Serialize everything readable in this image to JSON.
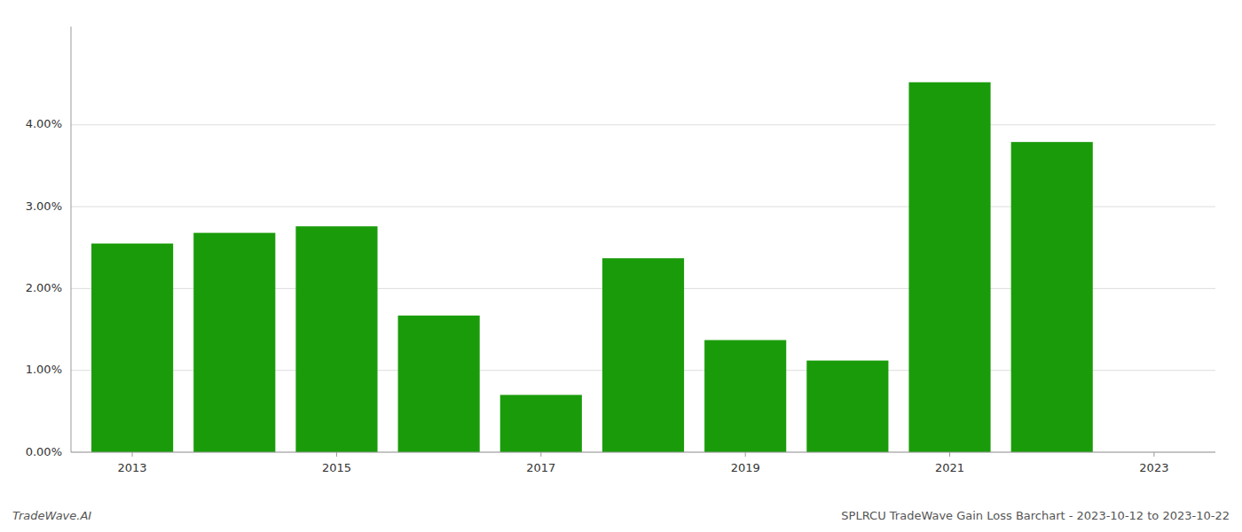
{
  "chart_data": {
    "type": "bar",
    "title": "SPLRCU TradeWave Gain Loss Barchart - 2023-10-12 to 2023-10-22",
    "annotations": [
      "TradeWave.AI"
    ],
    "x": [
      2013,
      2014,
      2015,
      2016,
      2017,
      2018,
      2019,
      2020,
      2021,
      2022
    ],
    "values": [
      0.0255,
      0.0268,
      0.0276,
      0.0167,
      0.007,
      0.0237,
      0.0137,
      0.0112,
      0.0452,
      0.0379
    ],
    "color": "#1a9c0a",
    "xlim": [
      2012.4,
      2023.6
    ],
    "xticks": [
      2013,
      2015,
      2017,
      2019,
      2021,
      2023
    ],
    "ylim": [
      0,
      0.052
    ],
    "yticks": [
      {
        "value": 0.0,
        "label": "0.00%"
      },
      {
        "value": 0.01,
        "label": "1.00%"
      },
      {
        "value": 0.02,
        "label": "2.00%"
      },
      {
        "value": 0.03,
        "label": "3.00%"
      },
      {
        "value": 0.04,
        "label": "4.00%"
      }
    ],
    "grid": true
  }
}
